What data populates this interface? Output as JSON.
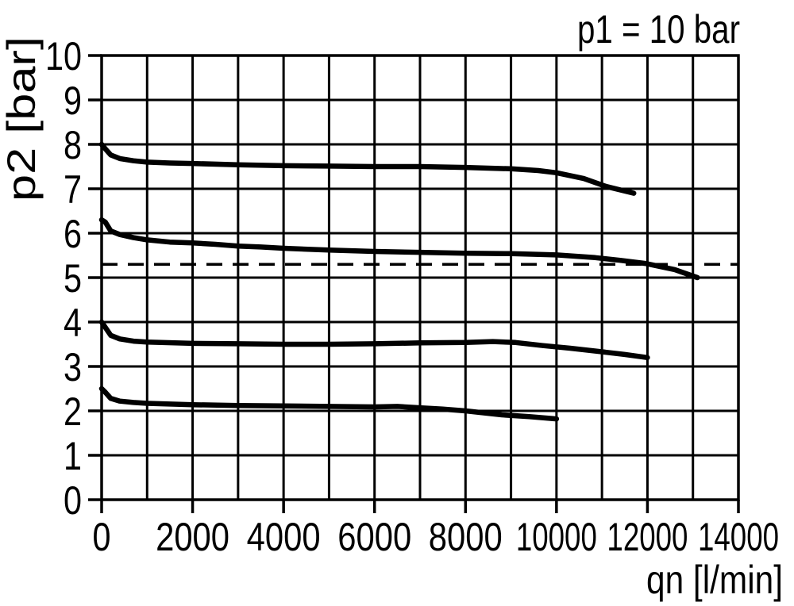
{
  "colors": {
    "ink": "#000000",
    "background": "#ffffff"
  },
  "chart_data": {
    "type": "line",
    "title": "p1 = 10 bar",
    "xlabel": "qn [l/min]",
    "ylabel": "p2 [bar]",
    "xlim": [
      0,
      14000
    ],
    "ylim": [
      0,
      10
    ],
    "grid": true,
    "legend": false,
    "x_grid_step": 1000,
    "y_grid_step": 1,
    "x_tick_step": 2000,
    "y_tick_step": 1,
    "x_tick_labels": [
      "0",
      "2000",
      "4000",
      "6000",
      "8000",
      "10000",
      "12000",
      "14000"
    ],
    "y_tick_labels": [
      "0",
      "1",
      "2",
      "3",
      "4",
      "5",
      "6",
      "7",
      "8",
      "9",
      "10"
    ],
    "reference_line": {
      "style": "dashed",
      "y": 5.3,
      "x_start": 0,
      "x_end": 14000
    },
    "series": [
      {
        "name": "curve starting at 8.0 bar",
        "points": [
          [
            0,
            8.0
          ],
          [
            80,
            7.9
          ],
          [
            200,
            7.76
          ],
          [
            400,
            7.68
          ],
          [
            700,
            7.63
          ],
          [
            1000,
            7.6
          ],
          [
            1500,
            7.58
          ],
          [
            2000,
            7.57
          ],
          [
            3000,
            7.54
          ],
          [
            4000,
            7.52
          ],
          [
            5000,
            7.51
          ],
          [
            6000,
            7.5
          ],
          [
            7000,
            7.5
          ],
          [
            8000,
            7.48
          ],
          [
            9000,
            7.45
          ],
          [
            9600,
            7.41
          ],
          [
            10000,
            7.36
          ],
          [
            10600,
            7.23
          ],
          [
            11100,
            7.05
          ],
          [
            11700,
            6.9
          ]
        ]
      },
      {
        "name": "curve starting at 6.3 bar",
        "points": [
          [
            0,
            6.3
          ],
          [
            80,
            6.25
          ],
          [
            200,
            6.05
          ],
          [
            400,
            5.97
          ],
          [
            700,
            5.9
          ],
          [
            1000,
            5.85
          ],
          [
            1500,
            5.8
          ],
          [
            2000,
            5.78
          ],
          [
            2500,
            5.75
          ],
          [
            3000,
            5.71
          ],
          [
            3500,
            5.69
          ],
          [
            4000,
            5.66
          ],
          [
            5000,
            5.62
          ],
          [
            6000,
            5.59
          ],
          [
            7000,
            5.57
          ],
          [
            8000,
            5.55
          ],
          [
            9000,
            5.54
          ],
          [
            10000,
            5.51
          ],
          [
            10850,
            5.45
          ],
          [
            11400,
            5.39
          ],
          [
            11950,
            5.32
          ],
          [
            12600,
            5.18
          ],
          [
            13100,
            5.0
          ]
        ]
      },
      {
        "name": "curve starting at 4.0 bar",
        "points": [
          [
            0,
            4.0
          ],
          [
            80,
            3.88
          ],
          [
            200,
            3.7
          ],
          [
            400,
            3.62
          ],
          [
            700,
            3.57
          ],
          [
            1000,
            3.55
          ],
          [
            2000,
            3.52
          ],
          [
            3000,
            3.51
          ],
          [
            4000,
            3.5
          ],
          [
            5000,
            3.5
          ],
          [
            6000,
            3.51
          ],
          [
            7000,
            3.53
          ],
          [
            8000,
            3.54
          ],
          [
            8600,
            3.56
          ],
          [
            9100,
            3.54
          ],
          [
            9700,
            3.47
          ],
          [
            10300,
            3.41
          ],
          [
            11000,
            3.33
          ],
          [
            11500,
            3.27
          ],
          [
            12000,
            3.2
          ]
        ]
      },
      {
        "name": "curve starting at 2.5 bar",
        "points": [
          [
            0,
            2.5
          ],
          [
            80,
            2.42
          ],
          [
            200,
            2.28
          ],
          [
            400,
            2.22
          ],
          [
            700,
            2.19
          ],
          [
            1000,
            2.17
          ],
          [
            2000,
            2.14
          ],
          [
            3000,
            2.12
          ],
          [
            4000,
            2.11
          ],
          [
            5000,
            2.1
          ],
          [
            6000,
            2.09
          ],
          [
            6500,
            2.1
          ],
          [
            7000,
            2.07
          ],
          [
            7500,
            2.04
          ],
          [
            8000,
            2.0
          ],
          [
            8800,
            1.91
          ],
          [
            9400,
            1.87
          ],
          [
            10000,
            1.82
          ]
        ]
      }
    ]
  }
}
